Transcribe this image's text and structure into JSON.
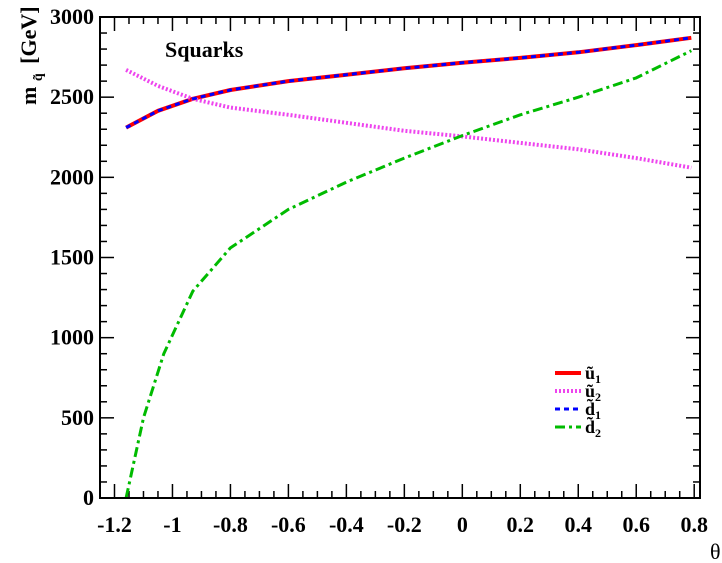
{
  "chart_data": {
    "type": "line",
    "title": "",
    "annotation": "Squarks",
    "xlabel": "θ",
    "ylabel": {
      "main": "m",
      "sub": "q̃",
      "units": "[GeV]"
    },
    "xlim": [
      -1.25,
      0.82
    ],
    "ylim": [
      0,
      3000
    ],
    "xticks": [
      {
        "v": -1.2,
        "label": "-1.2"
      },
      {
        "v": -1.0,
        "label": "-1"
      },
      {
        "v": -0.8,
        "label": "-0.8"
      },
      {
        "v": -0.6,
        "label": "-0.6"
      },
      {
        "v": -0.4,
        "label": "-0.4"
      },
      {
        "v": -0.2,
        "label": "-0.2"
      },
      {
        "v": 0.0,
        "label": "0"
      },
      {
        "v": 0.2,
        "label": "0.2"
      },
      {
        "v": 0.4,
        "label": "0.4"
      },
      {
        "v": 0.6,
        "label": "0.6"
      },
      {
        "v": 0.8,
        "label": "0.8"
      }
    ],
    "yticks": [
      {
        "v": 0,
        "label": "0"
      },
      {
        "v": 500,
        "label": "500"
      },
      {
        "v": 1000,
        "label": "1000"
      },
      {
        "v": 1500,
        "label": "1500"
      },
      {
        "v": 2000,
        "label": "2000"
      },
      {
        "v": 2500,
        "label": "2500"
      },
      {
        "v": 3000,
        "label": "3000"
      }
    ],
    "grid": false,
    "legend_position": "bottom-right",
    "series": [
      {
        "name": "ũ1",
        "base": "ũ",
        "index": "1",
        "color": "#ff0000",
        "dash": "none",
        "width": 4,
        "points": [
          [
            -1.16,
            2310
          ],
          [
            -1.05,
            2415
          ],
          [
            -0.93,
            2490
          ],
          [
            -0.8,
            2545
          ],
          [
            -0.6,
            2600
          ],
          [
            -0.4,
            2640
          ],
          [
            -0.2,
            2680
          ],
          [
            0.0,
            2715
          ],
          [
            0.2,
            2745
          ],
          [
            0.4,
            2780
          ],
          [
            0.6,
            2825
          ],
          [
            0.79,
            2870
          ]
        ]
      },
      {
        "name": "ũ2",
        "base": "ũ",
        "index": "2",
        "color": "#ee44ee",
        "dash": "2 2",
        "width": 4,
        "points": [
          [
            -1.16,
            2670
          ],
          [
            -1.05,
            2570
          ],
          [
            -0.93,
            2490
          ],
          [
            -0.8,
            2435
          ],
          [
            -0.6,
            2390
          ],
          [
            -0.4,
            2340
          ],
          [
            -0.2,
            2290
          ],
          [
            0.0,
            2255
          ],
          [
            0.2,
            2215
          ],
          [
            0.4,
            2175
          ],
          [
            0.6,
            2120
          ],
          [
            0.79,
            2060
          ]
        ]
      },
      {
        "name": "d̃1",
        "base": "d̃",
        "index": "1",
        "color": "#0000ff",
        "dash": "5 4",
        "width": 3,
        "points": [
          [
            -1.16,
            2310
          ],
          [
            -1.05,
            2415
          ],
          [
            -0.93,
            2490
          ],
          [
            -0.8,
            2545
          ],
          [
            -0.6,
            2600
          ],
          [
            -0.4,
            2640
          ],
          [
            -0.2,
            2680
          ],
          [
            0.0,
            2715
          ],
          [
            0.2,
            2745
          ],
          [
            0.4,
            2780
          ],
          [
            0.6,
            2825
          ],
          [
            0.79,
            2870
          ]
        ]
      },
      {
        "name": "d̃2",
        "base": "d̃",
        "index": "2",
        "color": "#00bb00",
        "dash": "10 4 3 4",
        "width": 3,
        "points": [
          [
            -1.16,
            0
          ],
          [
            -1.1,
            500
          ],
          [
            -1.03,
            900
          ],
          [
            -0.93,
            1290
          ],
          [
            -0.8,
            1560
          ],
          [
            -0.6,
            1800
          ],
          [
            -0.4,
            1970
          ],
          [
            -0.2,
            2120
          ],
          [
            0.0,
            2260
          ],
          [
            0.2,
            2390
          ],
          [
            0.4,
            2500
          ],
          [
            0.6,
            2620
          ],
          [
            0.79,
            2790
          ]
        ]
      }
    ]
  }
}
